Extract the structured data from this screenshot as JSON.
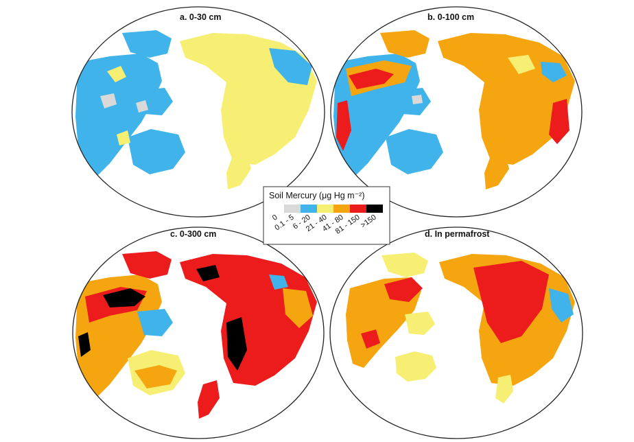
{
  "figure": {
    "panels": [
      {
        "id": "a",
        "title": "a. 0-30 cm"
      },
      {
        "id": "b",
        "title": "b. 0-100 cm"
      },
      {
        "id": "c",
        "title": "c. 0-300 cm"
      },
      {
        "id": "d",
        "title": "d. In permafrost"
      }
    ],
    "legend": {
      "title": "Soil Mercury (μg Hg m⁻²)",
      "classes": [
        {
          "label": "0",
          "color": "#ffffff"
        },
        {
          "label": "0.1 - 5",
          "color": "#d9d9d9"
        },
        {
          "label": "6 - 20",
          "color": "#40b4ea"
        },
        {
          "label": "21 - 40",
          "color": "#f6ef74"
        },
        {
          "label": "41 - 80",
          "color": "#f5a50f"
        },
        {
          "label": "81 - 150",
          "color": "#ec1c1c"
        },
        {
          "label": ">150",
          "color": "#000000"
        }
      ]
    },
    "outline_color": "#c8c8c8"
  }
}
